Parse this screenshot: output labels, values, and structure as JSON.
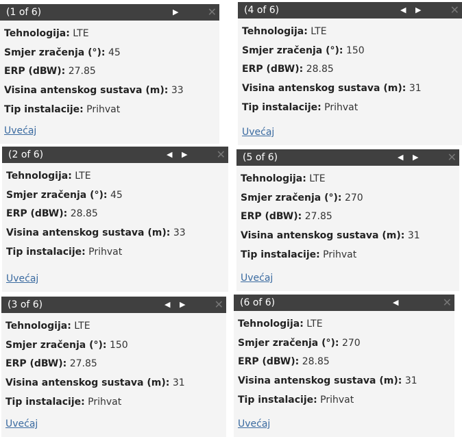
{
  "labels": {
    "tech": "Tehnologija:",
    "dir": "Smjer zračenja (°):",
    "erp": "ERP (dBW):",
    "height": "Visina antenskog sustava (m):",
    "type": "Tip instalacije:",
    "zoom": "Uvećaj"
  },
  "popups": [
    {
      "title": "(1 of 6)",
      "tech": "LTE",
      "dir": "45",
      "erp": "27.85",
      "height": "33",
      "type": "Prihvat"
    },
    {
      "title": "(2 of 6)",
      "tech": "LTE",
      "dir": "45",
      "erp": "28.85",
      "height": "33",
      "type": "Prihvat"
    },
    {
      "title": "(3 of 6)",
      "tech": "LTE",
      "dir": "150",
      "erp": "27.85",
      "height": "31",
      "type": "Prihvat"
    },
    {
      "title": "(4 of 6)",
      "tech": "LTE",
      "dir": "150",
      "erp": "28.85",
      "height": "31",
      "type": "Prihvat"
    },
    {
      "title": "(5 of 6)",
      "tech": "LTE",
      "dir": "270",
      "erp": "27.85",
      "height": "31",
      "type": "Prihvat"
    },
    {
      "title": "(6 of 6)",
      "tech": "LTE",
      "dir": "270",
      "erp": "28.85",
      "height": "31",
      "type": "Prihvat"
    }
  ],
  "icons": {
    "prev": "◀",
    "next": "▶",
    "close": "✕"
  },
  "colors": {
    "header": "#404040",
    "link": "#3a6aa0",
    "body": "#f4f4f4"
  }
}
